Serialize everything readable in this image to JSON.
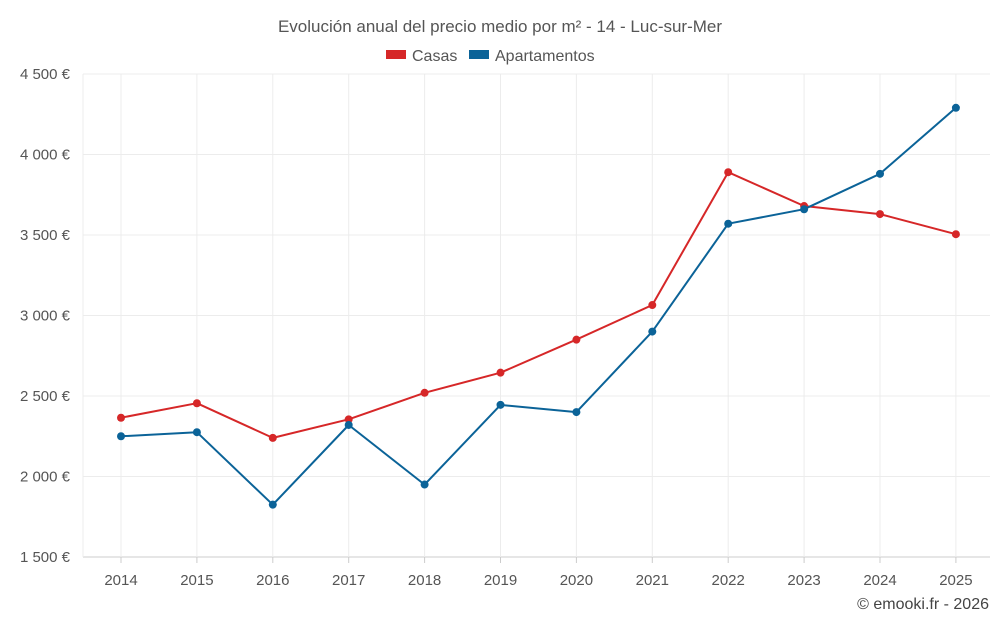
{
  "chart_data": {
    "type": "line",
    "title": "Evolución anual del precio medio por m² - 14 - Luc-sur-Mer",
    "categories": [
      "2014",
      "2015",
      "2016",
      "2017",
      "2018",
      "2019",
      "2020",
      "2021",
      "2022",
      "2023",
      "2024",
      "2025"
    ],
    "series": [
      {
        "name": "Casas",
        "color": "#d62728",
        "values": [
          2365,
          2455,
          2240,
          2355,
          2520,
          2645,
          2850,
          3065,
          3890,
          3680,
          3630,
          3505
        ]
      },
      {
        "name": "Apartamentos",
        "color": "#0b6398",
        "values": [
          2250,
          2275,
          1825,
          2320,
          1950,
          2445,
          2400,
          2900,
          3570,
          3660,
          3880,
          4290
        ]
      }
    ],
    "ylim": [
      1500,
      4500
    ],
    "yticks": [
      1500,
      2000,
      2500,
      3000,
      3500,
      4000,
      4500
    ],
    "ytick_labels": [
      "1 500 €",
      "2 000 €",
      "2 500 €",
      "3 000 €",
      "3 500 €",
      "4 000 €",
      "4 500 €"
    ],
    "grid": true,
    "legend": "top-center",
    "xlabel": "",
    "ylabel": ""
  },
  "credit": "© emooki.fr - 2026"
}
